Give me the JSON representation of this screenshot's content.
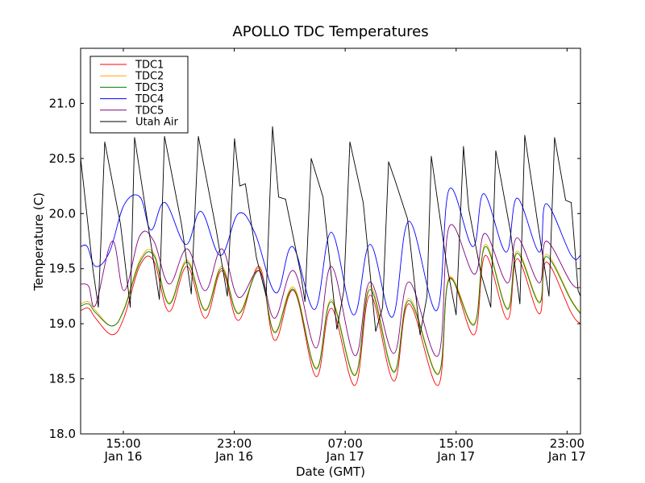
{
  "chart_data": {
    "type": "line",
    "title": "APOLLO TDC Temperatures",
    "xlabel": "Date (GMT)",
    "ylabel": "Temperature (C)",
    "x_units": "hours since 00:00 Jan 16 (GMT)",
    "xlim": [
      11.92,
      47.97
    ],
    "ylim": [
      18.0,
      21.5
    ],
    "grid": false,
    "legend_position": "top-left",
    "yticks": [
      18.0,
      18.5,
      19.0,
      19.5,
      20.0,
      20.5,
      21.0
    ],
    "ytick_labels": [
      "18.0",
      "18.5",
      "19.0",
      "19.5",
      "20.0",
      "20.5",
      "21.0"
    ],
    "xticks": [
      15,
      23,
      31,
      39,
      47
    ],
    "xtick_labels": [
      [
        "15:00",
        "Jan 16"
      ],
      [
        "23:00",
        "Jan 16"
      ],
      [
        "07:00",
        "Jan 17"
      ],
      [
        "15:00",
        "Jan 17"
      ],
      [
        "23:00",
        "Jan 17"
      ]
    ],
    "series": [
      {
        "name": "TDC1",
        "color": "#ff0000",
        "x": [
          11.92,
          12.5,
          13.0,
          14.2,
          15.06,
          16.2,
          17.2,
          18.3,
          19.6,
          20.9,
          22.1,
          23.3,
          24.8,
          25.9,
          27.3,
          28.9,
          30.0,
          31.7,
          32.8,
          34.5,
          35.6,
          37.7,
          38.5,
          40.3,
          41.1,
          42.7,
          43.4,
          45.0,
          45.5,
          47.3,
          47.97
        ],
        "y": [
          19.12,
          19.14,
          19.05,
          18.9,
          19.06,
          19.53,
          19.57,
          19.11,
          19.52,
          19.05,
          19.48,
          19.03,
          19.52,
          18.85,
          19.3,
          18.52,
          19.14,
          18.44,
          19.26,
          18.48,
          19.18,
          18.44,
          19.41,
          18.9,
          19.62,
          19.04,
          19.59,
          19.09,
          19.56,
          19.1,
          19.0
        ]
      },
      {
        "name": "TDC2",
        "color": "#ffa500",
        "x": [
          11.92,
          12.5,
          13.0,
          14.2,
          15.06,
          16.2,
          17.2,
          18.3,
          19.6,
          20.9,
          22.1,
          23.3,
          24.8,
          25.9,
          27.3,
          28.9,
          30.0,
          31.7,
          32.8,
          34.5,
          35.6,
          37.7,
          38.5,
          40.3,
          41.1,
          42.7,
          43.4,
          45.0,
          45.5,
          47.3,
          47.97
        ],
        "y": [
          19.18,
          19.2,
          19.12,
          18.98,
          19.14,
          19.58,
          19.64,
          19.19,
          19.58,
          19.13,
          19.52,
          19.1,
          19.5,
          18.93,
          19.33,
          18.6,
          19.22,
          18.54,
          19.34,
          18.57,
          19.23,
          18.55,
          19.42,
          19.0,
          19.72,
          19.14,
          19.66,
          19.2,
          19.63,
          19.22,
          19.1
        ]
      },
      {
        "name": "TDC3",
        "color": "#008000",
        "x": [
          11.92,
          12.5,
          13.0,
          14.2,
          15.06,
          16.2,
          17.2,
          18.3,
          19.6,
          20.9,
          22.1,
          23.3,
          24.8,
          25.9,
          27.3,
          28.9,
          30.0,
          31.7,
          32.8,
          34.5,
          35.6,
          37.7,
          38.5,
          40.3,
          41.1,
          42.7,
          43.4,
          45.0,
          45.5,
          47.3,
          47.97
        ],
        "y": [
          19.16,
          19.18,
          19.1,
          18.98,
          19.13,
          19.56,
          19.62,
          19.18,
          19.56,
          19.12,
          19.5,
          19.09,
          19.48,
          18.92,
          19.31,
          18.59,
          19.2,
          18.53,
          19.31,
          18.56,
          19.21,
          18.54,
          19.4,
          18.99,
          19.7,
          19.13,
          19.64,
          19.19,
          19.61,
          19.21,
          19.09
        ]
      },
      {
        "name": "TDC4",
        "color": "#0000ff",
        "x": [
          11.92,
          12.4,
          13.0,
          14.0,
          15.06,
          16.2,
          17.0,
          18.0,
          19.5,
          20.6,
          22.0,
          23.3,
          24.5,
          26.0,
          27.2,
          28.8,
          30.0,
          31.6,
          32.8,
          34.4,
          35.6,
          37.6,
          38.5,
          40.2,
          41.0,
          42.6,
          43.4,
          45.0,
          45.5,
          47.3,
          47.97
        ],
        "y": [
          19.7,
          19.7,
          19.52,
          19.65,
          20.08,
          20.15,
          19.85,
          20.1,
          19.72,
          20.02,
          19.62,
          20.0,
          19.82,
          19.28,
          19.7,
          19.13,
          19.83,
          19.08,
          19.72,
          19.06,
          19.93,
          19.12,
          20.22,
          19.7,
          20.18,
          19.65,
          20.14,
          19.65,
          20.09,
          19.62,
          19.62
        ]
      },
      {
        "name": "TDC5",
        "color": "#800080",
        "x": [
          11.92,
          12.5,
          13.0,
          14.2,
          15.06,
          16.2,
          17.2,
          18.3,
          19.6,
          20.9,
          22.1,
          23.3,
          24.8,
          25.9,
          27.3,
          28.9,
          30.0,
          31.7,
          32.8,
          34.5,
          35.6,
          37.7,
          38.5,
          40.3,
          41.1,
          42.7,
          43.4,
          45.0,
          45.5,
          47.3,
          47.97
        ],
        "y": [
          19.36,
          19.34,
          19.17,
          19.75,
          19.3,
          19.8,
          19.75,
          19.36,
          19.68,
          19.3,
          19.68,
          19.24,
          19.48,
          19.05,
          19.48,
          18.78,
          19.52,
          18.71,
          19.38,
          18.73,
          19.38,
          18.71,
          19.88,
          19.45,
          19.82,
          19.37,
          19.78,
          19.37,
          19.75,
          19.37,
          19.33
        ]
      },
      {
        "name": "Utah Air",
        "color": "#000000",
        "x": [
          11.92,
          12.1,
          12.8,
          13.2,
          13.66,
          14.8,
          15.5,
          15.81,
          16.9,
          17.6,
          17.97,
          19.2,
          19.9,
          20.41,
          21.7,
          22.5,
          23.02,
          23.4,
          23.8,
          24.6,
          25.3,
          25.76,
          26.2,
          26.7,
          27.8,
          28.1,
          28.55,
          29.4,
          30.4,
          30.9,
          31.34,
          32.3,
          33.2,
          33.7,
          34.13,
          34.6,
          35.5,
          36.4,
          36.9,
          37.21,
          38.3,
          39.0,
          39.53,
          39.9,
          40.8,
          41.5,
          41.86,
          42.9,
          43.6,
          43.95,
          44.9,
          45.7,
          46.1,
          46.9,
          47.3,
          47.8,
          47.97
        ],
        "y": [
          20.5,
          20.3,
          19.5,
          19.15,
          20.65,
          19.9,
          19.15,
          20.69,
          19.8,
          19.22,
          20.7,
          19.9,
          19.27,
          20.7,
          19.85,
          19.25,
          20.68,
          20.25,
          20.27,
          19.6,
          19.25,
          20.79,
          20.15,
          20.13,
          19.45,
          19.2,
          20.5,
          20.15,
          18.95,
          19.3,
          20.65,
          20.1,
          18.93,
          19.15,
          20.47,
          20.3,
          19.95,
          18.9,
          19.25,
          20.52,
          19.55,
          19.08,
          20.61,
          20.05,
          19.45,
          19.15,
          20.57,
          19.85,
          19.18,
          20.71,
          19.9,
          19.25,
          20.69,
          20.12,
          20.1,
          19.3,
          19.25
        ]
      }
    ]
  }
}
